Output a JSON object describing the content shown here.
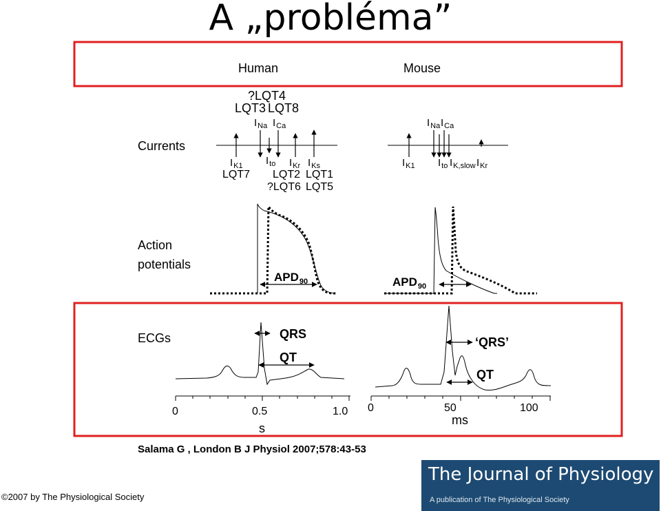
{
  "slide": {
    "title": "A „probléma”"
  },
  "columns": {
    "human": "Human",
    "mouse": "Mouse"
  },
  "rows": {
    "currents": "Currents",
    "action_potentials_line1": "Action",
    "action_potentials_line2": "potentials",
    "ecgs": "ECGs"
  },
  "human_currents": {
    "top_line1": "?LQT4",
    "top_line2a": "LQT3",
    "top_line2b": "LQT8",
    "i_na_main": "I",
    "i_na_sub": "Na",
    "i_ca_main": "I",
    "i_ca_sub": "Ca",
    "i_k1_main": "I",
    "i_k1_sub": "K1",
    "i_to_main": "I",
    "i_to_sub": "to",
    "i_kr_main": "I",
    "i_kr_sub": "Kr",
    "i_ks_main": "I",
    "i_ks_sub": "Ks",
    "lqt7": "LQT7",
    "lqt2": "LQT2",
    "lqt1": "LQT1",
    "lqt6": "?LQT6",
    "lqt5": "LQT5"
  },
  "mouse_currents": {
    "i_na_main": "I",
    "i_na_sub": "Na",
    "i_ca_main": "I",
    "i_ca_sub": "Ca",
    "i_k1_main": "I",
    "i_k1_sub": "K1",
    "i_to_main": "I",
    "i_to_sub": "to",
    "i_kslow_main": "I",
    "i_kslow_sub": "K,slow",
    "i_kr_main": "I",
    "i_kr_sub": "Kr"
  },
  "apd": {
    "main": "APD",
    "sub": "90"
  },
  "ecg": {
    "qrs_human": "QRS",
    "qt_human": "QT",
    "qrs_mouse": "‘QRS’",
    "qt_mouse": "QT"
  },
  "axes": {
    "human_ticks": [
      "0",
      "0.5",
      "1.0"
    ],
    "human_unit": "s",
    "mouse_ticks": [
      "0",
      "50",
      "100"
    ],
    "mouse_unit": "ms"
  },
  "citation": "Salama G , London B J Physiol 2007;578:43-53",
  "copyright": "©2007 by The Physiological Society",
  "journal": {
    "name": "The Journal of Physiology",
    "tagline": "A publication of The Physiological Society"
  },
  "colors": {
    "highlight_box": "#e02020",
    "journal_banner": "#1d4a72"
  }
}
